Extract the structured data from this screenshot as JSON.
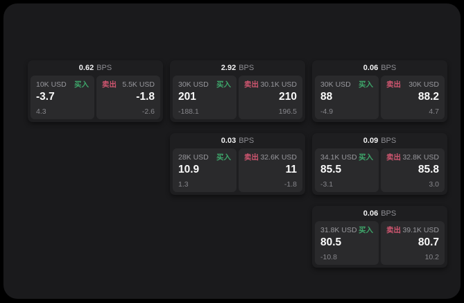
{
  "colors": {
    "background": "#000000",
    "panel": "#1a1a1c",
    "card": "#1e1e20",
    "tile": "#2a2a2c",
    "buy_accent": "#3ea56a",
    "sell_accent": "#d05670",
    "muted_text": "#98989d",
    "primary_text": "#fafafa"
  },
  "labels": {
    "bps": "BPS",
    "buy": "买入",
    "sell": "卖出"
  },
  "cards": [
    {
      "bps": "0.62",
      "buy": {
        "notional": "10K USD",
        "price": "-3.7",
        "delta": "4.3"
      },
      "sell": {
        "notional": "5.5K USD",
        "price": "-1.8",
        "delta": "-2.6"
      }
    },
    {
      "bps": "2.92",
      "buy": {
        "notional": "30K USD",
        "price": "201",
        "delta": "-188.1"
      },
      "sell": {
        "notional": "30.1K USD",
        "price": "210",
        "delta": "196.5"
      }
    },
    {
      "bps": "0.06",
      "buy": {
        "notional": "30K USD",
        "price": "88",
        "delta": "-4.9"
      },
      "sell": {
        "notional": "30K USD",
        "price": "88.2",
        "delta": "4.7"
      }
    },
    {
      "bps": "0.03",
      "buy": {
        "notional": "28K USD",
        "price": "10.9",
        "delta": "1.3"
      },
      "sell": {
        "notional": "32.6K USD",
        "price": "11",
        "delta": "-1.8"
      }
    },
    {
      "bps": "0.09",
      "buy": {
        "notional": "34.1K USD",
        "price": "85.5",
        "delta": "-3.1"
      },
      "sell": {
        "notional": "32.8K USD",
        "price": "85.8",
        "delta": "3.0"
      }
    },
    {
      "bps": "0.06",
      "buy": {
        "notional": "31.8K USD",
        "price": "80.5",
        "delta": "-10.8"
      },
      "sell": {
        "notional": "39.1K USD",
        "price": "80.7",
        "delta": "10.2"
      }
    }
  ]
}
